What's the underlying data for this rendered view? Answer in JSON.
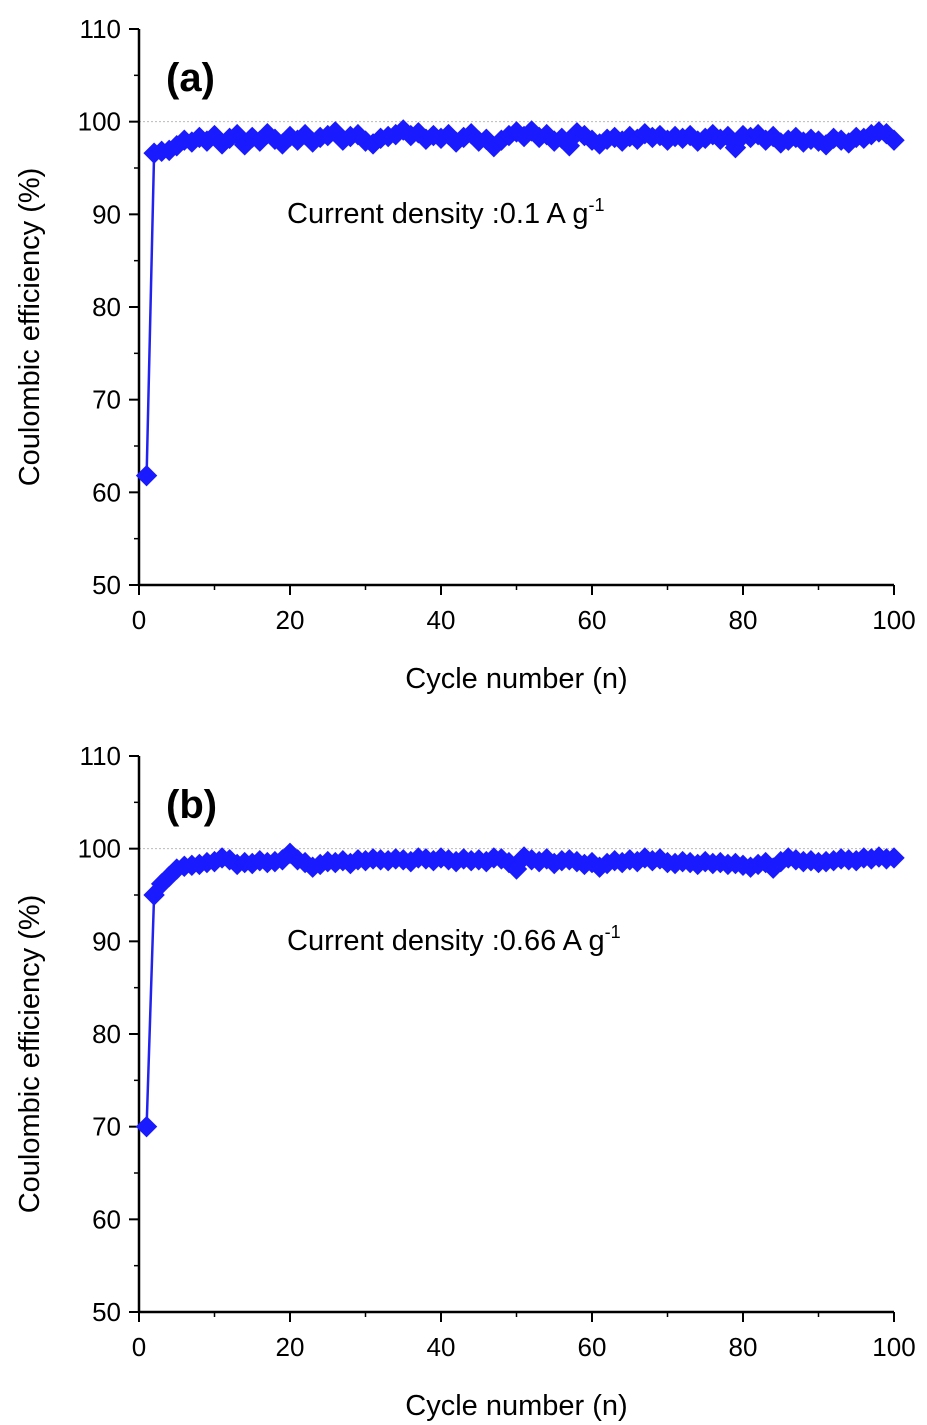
{
  "colors": {
    "series": "#1a1aff",
    "series_line": "#2222ee",
    "axis": "#000000",
    "refline": "#bbbbbb"
  },
  "chart_data": [
    {
      "type": "line",
      "panel_label": "(a)",
      "xlabel": "Cycle number (n)",
      "ylabel": "Coulombic efficiency (%)",
      "xlim": [
        0,
        100
      ],
      "ylim": [
        50,
        110
      ],
      "xticks": [
        "0",
        "20",
        "40",
        "60",
        "80",
        "100"
      ],
      "yticks": [
        "50",
        "60",
        "70",
        "80",
        "90",
        "100",
        "110"
      ],
      "reference_line_y": 100,
      "annotation": {
        "text": "Current density :0.1 A  g",
        "sup": "-1"
      },
      "marker": "diamond",
      "grid": false,
      "x": [
        1,
        2,
        3,
        4,
        5,
        6,
        7,
        8,
        9,
        10,
        11,
        12,
        13,
        14,
        15,
        16,
        17,
        18,
        19,
        20,
        21,
        22,
        23,
        24,
        25,
        26,
        27,
        28,
        29,
        30,
        31,
        32,
        33,
        34,
        35,
        36,
        37,
        38,
        39,
        40,
        41,
        42,
        43,
        44,
        45,
        46,
        47,
        48,
        49,
        50,
        51,
        52,
        53,
        54,
        55,
        56,
        57,
        58,
        59,
        60,
        61,
        62,
        63,
        64,
        65,
        66,
        67,
        68,
        69,
        70,
        71,
        72,
        73,
        74,
        75,
        76,
        77,
        78,
        79,
        80,
        81,
        82,
        83,
        84,
        85,
        86,
        87,
        88,
        89,
        90,
        91,
        92,
        93,
        94,
        95,
        96,
        97,
        98,
        99,
        100
      ],
      "values": [
        61.8,
        96.6,
        96.8,
        96.9,
        97.4,
        98.0,
        97.8,
        98.3,
        97.9,
        98.5,
        97.6,
        98.2,
        98.6,
        97.5,
        98.3,
        97.9,
        98.7,
        98.1,
        97.6,
        98.4,
        98.0,
        98.6,
        97.8,
        98.3,
        98.5,
        98.9,
        98.0,
        98.4,
        98.6,
        97.9,
        97.6,
        98.2,
        98.4,
        98.6,
        99.1,
        98.5,
        98.8,
        98.1,
        98.5,
        98.2,
        98.6,
        97.8,
        98.3,
        98.7,
        97.9,
        98.1,
        97.3,
        98.0,
        98.5,
        98.9,
        98.4,
        99.0,
        98.3,
        98.6,
        97.9,
        98.2,
        97.4,
        98.8,
        98.5,
        98.0,
        97.6,
        98.1,
        98.3,
        97.9,
        98.4,
        98.1,
        98.7,
        98.3,
        98.5,
        98.0,
        98.4,
        98.2,
        98.5,
        97.9,
        98.2,
        98.6,
        98.1,
        98.4,
        97.2,
        98.5,
        98.3,
        98.6,
        98.0,
        98.4,
        97.7,
        98.0,
        98.3,
        97.8,
        98.1,
        97.9,
        97.5,
        98.2,
        98.0,
        97.7,
        98.3,
        98.2,
        98.6,
        98.9,
        98.7,
        98.0
      ]
    },
    {
      "type": "line",
      "panel_label": "(b)",
      "xlabel": "Cycle number (n)",
      "ylabel": "Coulombic efficiency (%)",
      "xlim": [
        0,
        100
      ],
      "ylim": [
        50,
        110
      ],
      "xticks": [
        "0",
        "20",
        "40",
        "60",
        "80",
        "100"
      ],
      "yticks": [
        "50",
        "60",
        "70",
        "80",
        "90",
        "100",
        "110"
      ],
      "reference_line_y": 100,
      "annotation": {
        "text": "Current density :0.66 A  g",
        "sup": "-1"
      },
      "marker": "diamond",
      "grid": false,
      "x": [
        1,
        2,
        3,
        4,
        5,
        6,
        7,
        8,
        9,
        10,
        11,
        12,
        13,
        14,
        15,
        16,
        17,
        18,
        19,
        20,
        21,
        22,
        23,
        24,
        25,
        26,
        27,
        28,
        29,
        30,
        31,
        32,
        33,
        34,
        35,
        36,
        37,
        38,
        39,
        40,
        41,
        42,
        43,
        44,
        45,
        46,
        47,
        48,
        49,
        50,
        51,
        52,
        53,
        54,
        55,
        56,
        57,
        58,
        59,
        60,
        61,
        62,
        63,
        64,
        65,
        66,
        67,
        68,
        69,
        70,
        71,
        72,
        73,
        74,
        75,
        76,
        77,
        78,
        79,
        80,
        81,
        82,
        83,
        84,
        85,
        86,
        87,
        88,
        89,
        90,
        91,
        92,
        93,
        94,
        95,
        96,
        97,
        98,
        99,
        100
      ],
      "values": [
        70.0,
        95.0,
        96.2,
        97.0,
        97.8,
        98.1,
        98.2,
        98.3,
        98.5,
        98.6,
        99.0,
        98.8,
        98.3,
        98.5,
        98.4,
        98.7,
        98.5,
        98.6,
        98.8,
        99.5,
        98.8,
        98.5,
        98.0,
        98.3,
        98.6,
        98.5,
        98.7,
        98.4,
        98.8,
        98.7,
        98.9,
        98.8,
        98.7,
        98.9,
        98.8,
        98.6,
        99.0,
        98.9,
        98.7,
        99.0,
        98.8,
        98.6,
        98.9,
        98.7,
        98.8,
        98.6,
        99.0,
        98.9,
        98.5,
        97.8,
        99.1,
        98.8,
        98.6,
        98.9,
        98.4,
        98.7,
        98.8,
        98.6,
        98.3,
        98.5,
        98.0,
        98.4,
        98.7,
        98.5,
        98.8,
        98.6,
        99.0,
        98.7,
        98.9,
        98.5,
        98.4,
        98.6,
        98.5,
        98.3,
        98.6,
        98.4,
        98.5,
        98.3,
        98.4,
        98.2,
        98.0,
        98.3,
        98.5,
        97.9,
        98.6,
        99.0,
        98.8,
        98.6,
        98.7,
        98.5,
        98.6,
        98.7,
        98.9,
        98.8,
        98.7,
        99.0,
        98.9,
        99.1,
        98.9,
        99.0
      ]
    }
  ]
}
